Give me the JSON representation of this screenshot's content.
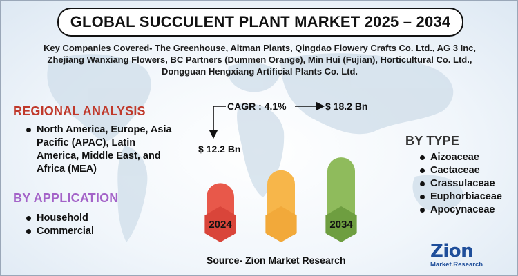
{
  "title": "GLOBAL SUCCULENT PLANT MARKET 2025 – 2034",
  "companies": "Key Companies Covered- The Greenhouse, Altman Plants, Qingdao Flowery Crafts Co. Ltd., AG 3 Inc, Zhejiang Wanxiang Flowers, BC Partners (Dummen Orange), Min Hui (Fujian), Horticultural Co. Ltd., Dongguan Hengxiang Artificial Plants Co. Ltd.",
  "regional": {
    "heading": "REGIONAL ANALYSIS",
    "items": [
      "North America, Europe, Asia Pacific (APAC), Latin America, Middle East, and Africa (MEA)"
    ]
  },
  "application": {
    "heading": "BY APPLICATION",
    "items": [
      "Household",
      "Commercial"
    ]
  },
  "type": {
    "heading": "BY TYPE",
    "items": [
      "Aizoaceae",
      "Cactaceae",
      "Crassulaceae",
      "Euphorbiaceae",
      "Apocynaceae"
    ]
  },
  "chart_data": {
    "type": "bar",
    "categories": [
      "2024",
      "",
      "2034"
    ],
    "values": [
      12.2,
      15.2,
      18.2
    ],
    "value_labels": [
      "$ 12.2 Bn",
      "",
      "$ 18.2 Bn"
    ],
    "cagr_label": "CAGR : 4.1%",
    "colors": [
      "#e8584a",
      "#f7b64a",
      "#8fbb5c"
    ],
    "badge_colors": [
      "#d9453a",
      "#f2a93a",
      "#6e9e40"
    ],
    "unit": "Bn"
  },
  "source": "Source- Zion Market Research",
  "logo": {
    "name": "Zion",
    "sub_left": "Market",
    "sub_dot": ".",
    "sub_right": "Research",
    "color": "#1f4e9a",
    "accent": "#e89a1f"
  }
}
